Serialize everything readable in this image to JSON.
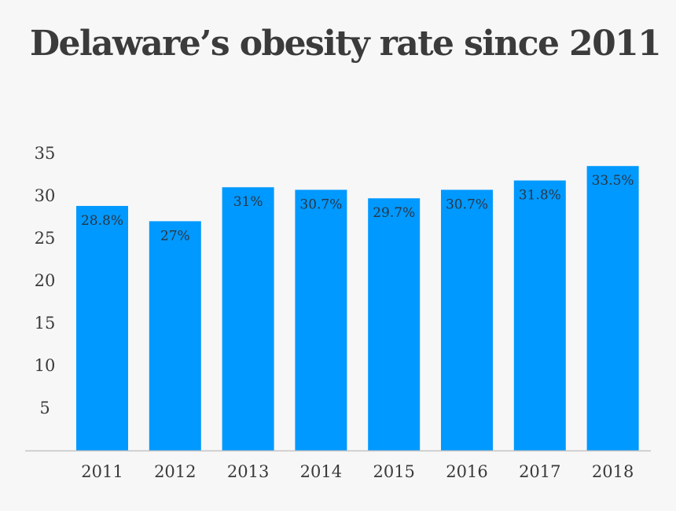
{
  "chart_data": {
    "type": "bar",
    "title": "Delaware’s obesity rate since 2011",
    "categories": [
      "2011",
      "2012",
      "2013",
      "2014",
      "2015",
      "2016",
      "2017",
      "2018"
    ],
    "values": [
      28.8,
      27,
      31,
      30.7,
      29.7,
      30.7,
      31.8,
      33.5
    ],
    "data_labels": [
      "28.8%",
      "27%",
      "31%",
      "30.7%",
      "29.7%",
      "30.7%",
      "31.8%",
      "33.5%"
    ],
    "yticks": [
      5,
      10,
      15,
      20,
      25,
      30,
      35
    ],
    "ylim": [
      0,
      35
    ],
    "xlabel": "",
    "ylabel": "",
    "grid": false,
    "colors": {
      "bar": "#0099ff",
      "axis": "#c4c4c4",
      "background": "#f7f7f7"
    }
  }
}
